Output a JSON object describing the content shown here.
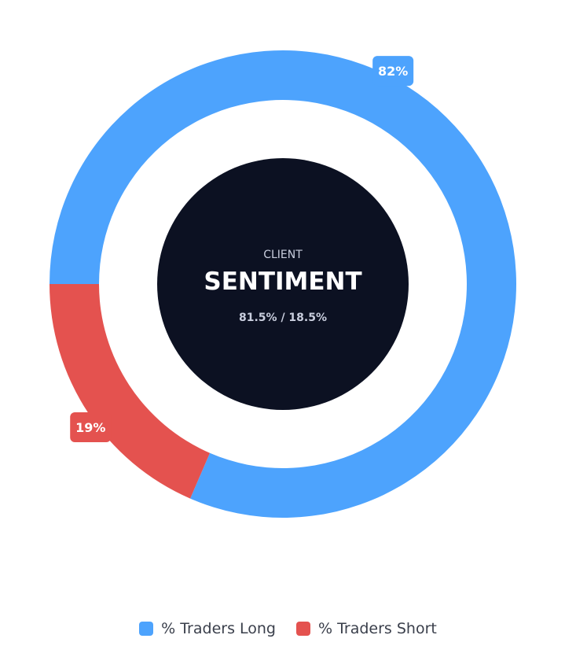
{
  "chart_data": {
    "type": "pie",
    "variant": "donut",
    "series": [
      {
        "name": "% Traders Long",
        "value": 81.5,
        "label": "82%",
        "color": "#4da3fd"
      },
      {
        "name": "% Traders Short",
        "value": 18.5,
        "label": "19%",
        "color": "#e4524f"
      }
    ],
    "center": {
      "subtitle": "CLIENT",
      "title": "SENTIMENT",
      "detail": "81.5% / 18.5%",
      "background": "#0c1122"
    },
    "legend": {
      "placement": "bottom-center"
    }
  }
}
